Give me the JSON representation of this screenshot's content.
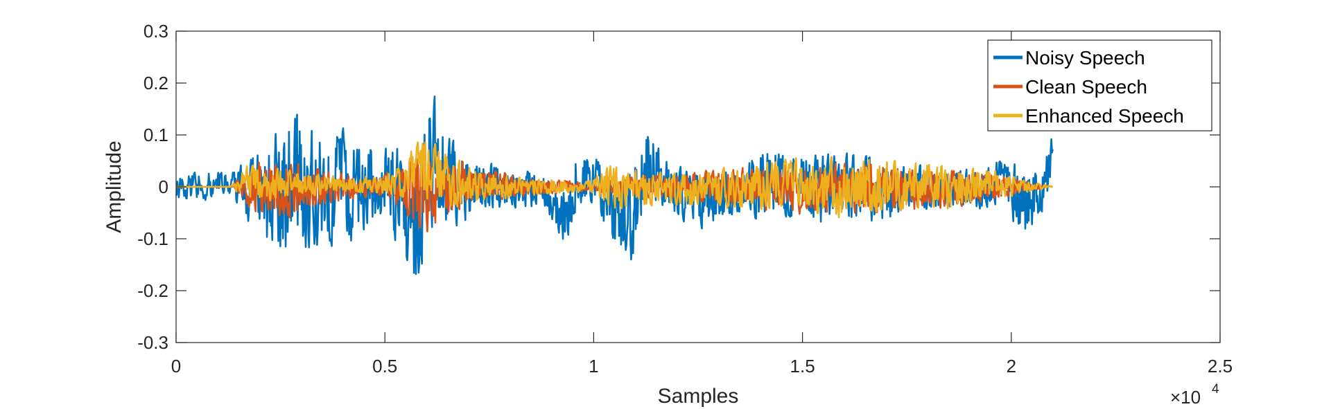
{
  "chart_data": {
    "type": "line",
    "title": "",
    "xlabel": "Samples",
    "ylabel": "Amplitude",
    "x_exponent_label": {
      "base": "×10",
      "exp": "4"
    },
    "xlim": [
      0,
      25000
    ],
    "ylim": [
      -0.3,
      0.3
    ],
    "xticks": [
      0,
      5000,
      10000,
      15000,
      20000,
      25000
    ],
    "xtick_labels": [
      "0",
      "0.5",
      "1",
      "1.5",
      "2",
      "2.5"
    ],
    "yticks": [
      -0.3,
      -0.2,
      -0.1,
      0,
      0.1,
      0.2,
      0.3
    ],
    "ytick_labels": [
      "-0.3",
      "-0.2",
      "-0.1",
      "0",
      "0.1",
      "0.2",
      "0.3"
    ],
    "grid": false,
    "legend_position": "top-right",
    "num_samples": 21000,
    "series": [
      {
        "name": "Noisy Speech",
        "color": "#0072BD",
        "envelope_points": [
          {
            "x": 0,
            "max": 0.02,
            "min": -0.03
          },
          {
            "x": 600,
            "max": 0.04,
            "min": -0.03
          },
          {
            "x": 1300,
            "max": 0.03,
            "min": -0.02
          },
          {
            "x": 1800,
            "max": 0.06,
            "min": -0.09
          },
          {
            "x": 2200,
            "max": 0.1,
            "min": -0.16
          },
          {
            "x": 2700,
            "max": 0.17,
            "min": -0.15
          },
          {
            "x": 3200,
            "max": 0.14,
            "min": -0.14
          },
          {
            "x": 3700,
            "max": 0.12,
            "min": -0.12
          },
          {
            "x": 4200,
            "max": 0.13,
            "min": -0.12
          },
          {
            "x": 4700,
            "max": 0.1,
            "min": -0.08
          },
          {
            "x": 5300,
            "max": 0.09,
            "min": -0.12
          },
          {
            "x": 5700,
            "max": 0.05,
            "min": -0.22
          },
          {
            "x": 6100,
            "max": 0.21,
            "min": -0.1
          },
          {
            "x": 6600,
            "max": 0.1,
            "min": -0.09
          },
          {
            "x": 7200,
            "max": 0.06,
            "min": -0.06
          },
          {
            "x": 8000,
            "max": 0.05,
            "min": -0.04
          },
          {
            "x": 8800,
            "max": 0.03,
            "min": -0.05
          },
          {
            "x": 9300,
            "max": 0.02,
            "min": -0.12
          },
          {
            "x": 9600,
            "max": 0.09,
            "min": -0.05
          },
          {
            "x": 10000,
            "max": 0.07,
            "min": -0.03
          },
          {
            "x": 10400,
            "max": 0.02,
            "min": -0.11
          },
          {
            "x": 10900,
            "max": 0.04,
            "min": -0.16
          },
          {
            "x": 11300,
            "max": 0.15,
            "min": -0.03
          },
          {
            "x": 11800,
            "max": 0.05,
            "min": -0.05
          },
          {
            "x": 12500,
            "max": 0.04,
            "min": -0.09
          },
          {
            "x": 13400,
            "max": 0.04,
            "min": -0.06
          },
          {
            "x": 14000,
            "max": 0.08,
            "min": -0.07
          },
          {
            "x": 14600,
            "max": 0.09,
            "min": -0.06
          },
          {
            "x": 15300,
            "max": 0.07,
            "min": -0.09
          },
          {
            "x": 16000,
            "max": 0.08,
            "min": -0.07
          },
          {
            "x": 16800,
            "max": 0.06,
            "min": -0.08
          },
          {
            "x": 17600,
            "max": 0.05,
            "min": -0.05
          },
          {
            "x": 18400,
            "max": 0.04,
            "min": -0.05
          },
          {
            "x": 19300,
            "max": 0.04,
            "min": -0.05
          },
          {
            "x": 19800,
            "max": 0.06,
            "min": -0.03
          },
          {
            "x": 20300,
            "max": 0.05,
            "min": -0.12
          },
          {
            "x": 20700,
            "max": 0.03,
            "min": -0.06
          },
          {
            "x": 21000,
            "max": 0.12,
            "min": -0.01
          }
        ]
      },
      {
        "name": "Clean Speech",
        "color": "#D95319",
        "envelope_points": [
          {
            "x": 0,
            "max": 0.0,
            "min": 0.0
          },
          {
            "x": 1300,
            "max": 0.0,
            "min": 0.0
          },
          {
            "x": 1800,
            "max": 0.05,
            "min": -0.05
          },
          {
            "x": 2500,
            "max": 0.06,
            "min": -0.07
          },
          {
            "x": 3200,
            "max": 0.05,
            "min": -0.05
          },
          {
            "x": 4000,
            "max": 0.03,
            "min": -0.03
          },
          {
            "x": 4700,
            "max": 0.02,
            "min": -0.02
          },
          {
            "x": 5300,
            "max": 0.04,
            "min": -0.04
          },
          {
            "x": 5900,
            "max": 0.08,
            "min": -0.1
          },
          {
            "x": 6500,
            "max": 0.07,
            "min": -0.07
          },
          {
            "x": 7200,
            "max": 0.04,
            "min": -0.03
          },
          {
            "x": 8500,
            "max": 0.02,
            "min": -0.02
          },
          {
            "x": 9800,
            "max": 0.01,
            "min": -0.01
          },
          {
            "x": 10800,
            "max": 0.02,
            "min": -0.02
          },
          {
            "x": 12000,
            "max": 0.03,
            "min": -0.03
          },
          {
            "x": 13500,
            "max": 0.04,
            "min": -0.04
          },
          {
            "x": 15000,
            "max": 0.05,
            "min": -0.06
          },
          {
            "x": 16500,
            "max": 0.05,
            "min": -0.06
          },
          {
            "x": 18000,
            "max": 0.04,
            "min": -0.05
          },
          {
            "x": 19500,
            "max": 0.03,
            "min": -0.03
          },
          {
            "x": 20500,
            "max": 0.01,
            "min": -0.01
          },
          {
            "x": 21000,
            "max": 0.0,
            "min": 0.0
          }
        ]
      },
      {
        "name": "Enhanced Speech",
        "color": "#EDB120",
        "envelope_points": [
          {
            "x": 0,
            "max": 0.0,
            "min": 0.0
          },
          {
            "x": 1300,
            "max": 0.0,
            "min": 0.0
          },
          {
            "x": 1700,
            "max": 0.05,
            "min": -0.03
          },
          {
            "x": 2300,
            "max": 0.04,
            "min": -0.03
          },
          {
            "x": 3200,
            "max": 0.03,
            "min": -0.02
          },
          {
            "x": 4200,
            "max": 0.02,
            "min": -0.01
          },
          {
            "x": 5200,
            "max": 0.03,
            "min": -0.02
          },
          {
            "x": 5900,
            "max": 0.1,
            "min": -0.04
          },
          {
            "x": 6500,
            "max": 0.07,
            "min": -0.05
          },
          {
            "x": 7300,
            "max": 0.03,
            "min": -0.03
          },
          {
            "x": 8500,
            "max": 0.02,
            "min": -0.02
          },
          {
            "x": 9800,
            "max": 0.01,
            "min": -0.01
          },
          {
            "x": 10500,
            "max": 0.05,
            "min": -0.05
          },
          {
            "x": 11200,
            "max": 0.03,
            "min": -0.04
          },
          {
            "x": 12500,
            "max": 0.03,
            "min": -0.04
          },
          {
            "x": 13900,
            "max": 0.05,
            "min": -0.05
          },
          {
            "x": 14600,
            "max": 0.06,
            "min": -0.04
          },
          {
            "x": 15500,
            "max": 0.06,
            "min": -0.07
          },
          {
            "x": 16400,
            "max": 0.07,
            "min": -0.06
          },
          {
            "x": 17400,
            "max": 0.05,
            "min": -0.05
          },
          {
            "x": 18400,
            "max": 0.05,
            "min": -0.05
          },
          {
            "x": 19500,
            "max": 0.04,
            "min": -0.03
          },
          {
            "x": 20500,
            "max": 0.01,
            "min": -0.01
          },
          {
            "x": 21000,
            "max": 0.0,
            "min": 0.0
          }
        ]
      }
    ]
  }
}
